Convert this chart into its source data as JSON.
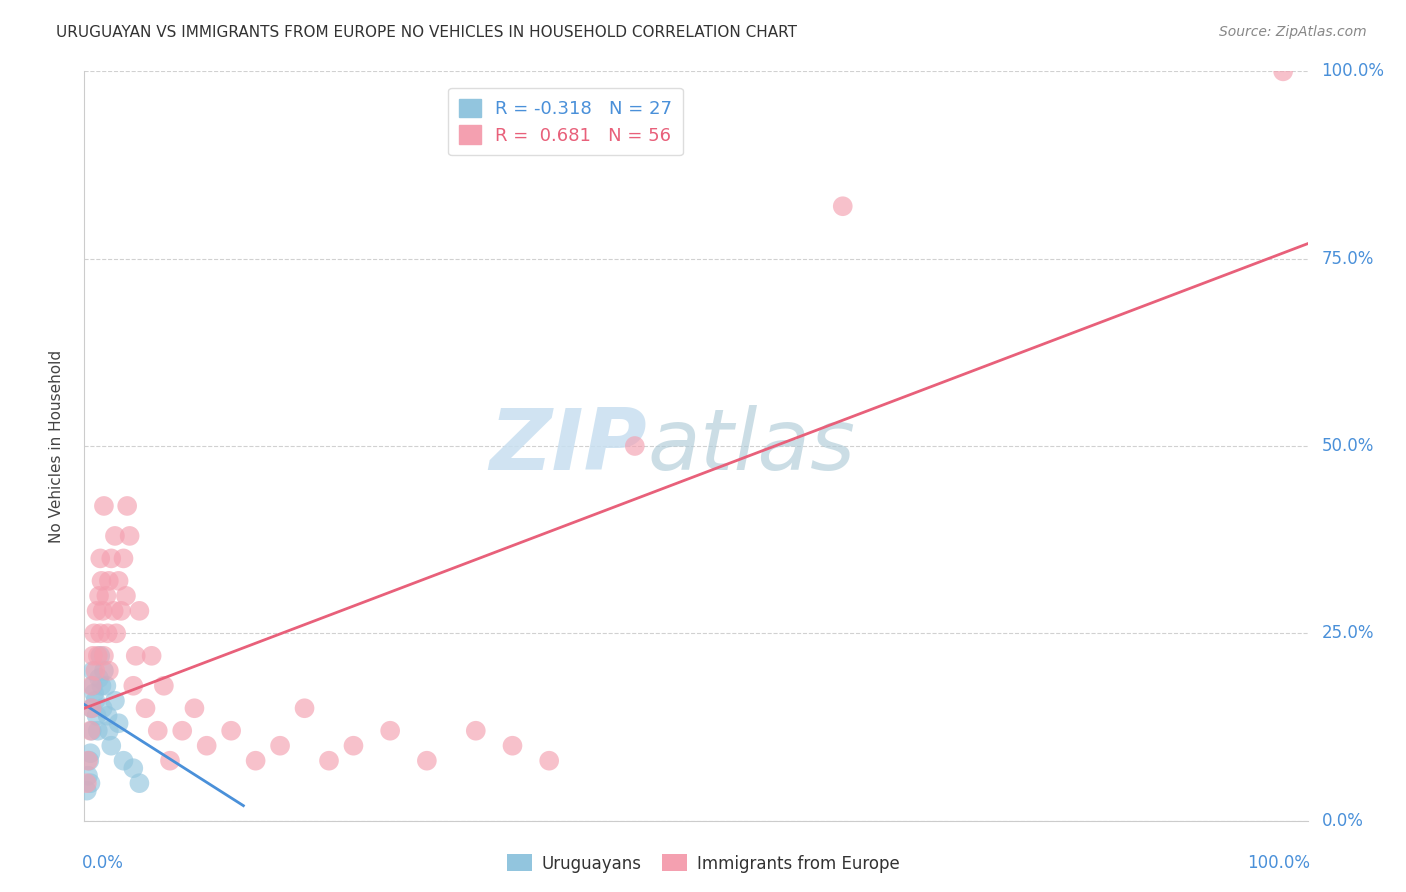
{
  "title": "URUGUAYAN VS IMMIGRANTS FROM EUROPE NO VEHICLES IN HOUSEHOLD CORRELATION CHART",
  "source": "Source: ZipAtlas.com",
  "ylabel": "No Vehicles in Household",
  "ytick_labels": [
    "0.0%",
    "25.0%",
    "50.0%",
    "75.0%",
    "100.0%"
  ],
  "ytick_values": [
    0.0,
    0.25,
    0.5,
    0.75,
    1.0
  ],
  "xtick_labels": [
    "0.0%",
    "100.0%"
  ],
  "xtick_values": [
    0.0,
    1.0
  ],
  "legend_uruguayan_r": "R = -0.318",
  "legend_uruguayan_n": "N = 27",
  "legend_europe_r": "R =  0.681",
  "legend_europe_n": "N = 56",
  "uruguayan_color": "#92C5DE",
  "europe_color": "#F4A0B0",
  "uruguayan_line_color": "#4A90D9",
  "europe_line_color": "#E8607A",
  "watermark_zip": "ZIP",
  "watermark_atlas": "atlas",
  "uruguayan_scatter_x": [
    0.002,
    0.003,
    0.004,
    0.005,
    0.005,
    0.006,
    0.006,
    0.007,
    0.007,
    0.008,
    0.009,
    0.01,
    0.011,
    0.012,
    0.013,
    0.014,
    0.015,
    0.016,
    0.018,
    0.019,
    0.02,
    0.022,
    0.025,
    0.028,
    0.032,
    0.04,
    0.045
  ],
  "uruguayan_scatter_y": [
    0.04,
    0.06,
    0.08,
    0.05,
    0.09,
    0.12,
    0.15,
    0.18,
    0.2,
    0.17,
    0.16,
    0.14,
    0.12,
    0.19,
    0.22,
    0.18,
    0.15,
    0.2,
    0.18,
    0.14,
    0.12,
    0.1,
    0.16,
    0.13,
    0.08,
    0.07,
    0.05
  ],
  "europe_scatter_x": [
    0.002,
    0.003,
    0.005,
    0.006,
    0.006,
    0.007,
    0.008,
    0.009,
    0.01,
    0.011,
    0.012,
    0.013,
    0.013,
    0.014,
    0.015,
    0.016,
    0.016,
    0.018,
    0.019,
    0.02,
    0.02,
    0.022,
    0.024,
    0.025,
    0.026,
    0.028,
    0.03,
    0.032,
    0.034,
    0.035,
    0.037,
    0.04,
    0.042,
    0.045,
    0.05,
    0.055,
    0.06,
    0.065,
    0.07,
    0.08,
    0.09,
    0.1,
    0.12,
    0.14,
    0.16,
    0.18,
    0.2,
    0.22,
    0.25,
    0.28,
    0.32,
    0.35,
    0.38,
    0.62,
    0.45,
    0.98
  ],
  "europe_scatter_y": [
    0.05,
    0.08,
    0.12,
    0.15,
    0.18,
    0.22,
    0.25,
    0.2,
    0.28,
    0.22,
    0.3,
    0.35,
    0.25,
    0.32,
    0.28,
    0.22,
    0.42,
    0.3,
    0.25,
    0.32,
    0.2,
    0.35,
    0.28,
    0.38,
    0.25,
    0.32,
    0.28,
    0.35,
    0.3,
    0.42,
    0.38,
    0.18,
    0.22,
    0.28,
    0.15,
    0.22,
    0.12,
    0.18,
    0.08,
    0.12,
    0.15,
    0.1,
    0.12,
    0.08,
    0.1,
    0.15,
    0.08,
    0.1,
    0.12,
    0.08,
    0.12,
    0.1,
    0.08,
    0.82,
    0.5,
    1.0
  ],
  "uruguayan_trend_x": [
    0.0,
    0.13
  ],
  "uruguayan_trend_y": [
    0.155,
    0.02
  ],
  "europe_trend_x": [
    0.0,
    1.0
  ],
  "europe_trend_y": [
    0.15,
    0.77
  ],
  "background_color": "#FFFFFF",
  "grid_color": "#CCCCCC",
  "grid_linestyle": "--",
  "title_color": "#333333",
  "source_color": "#888888",
  "ylabel_color": "#444444",
  "tick_label_color": "#4A90D9",
  "bottom_legend_labels": [
    "Uruguayans",
    "Immigrants from Europe"
  ]
}
